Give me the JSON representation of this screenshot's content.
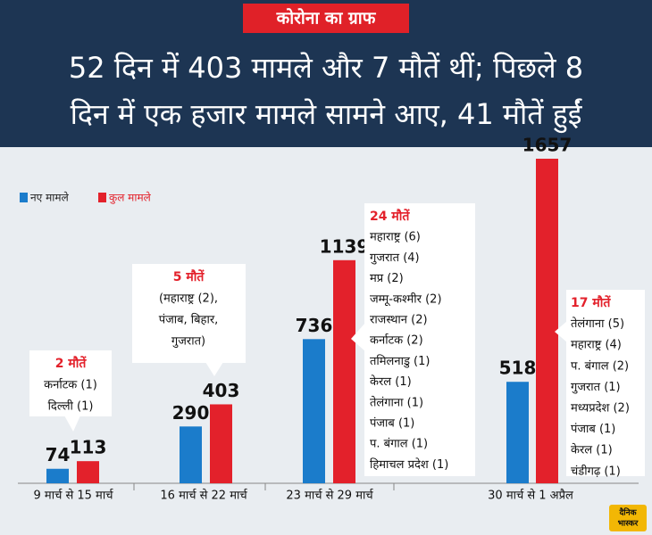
{
  "tag": "कोरोना का ग्राफ",
  "title_lines": [
    "52 दिन में 403 मामले और 7 मौतें थीं; पिछले 8",
    "दिन में एक हजार मामले सामने आए, 41 मौतें हुईं"
  ],
  "chart_data": {
    "type": "bar",
    "categories": [
      "9 मार्च से 15 मार्च",
      "16 मार्च से 22 मार्च",
      "23 मार्च से 29 मार्च",
      "30 मार्च से 1 अप्रैल"
    ],
    "series": [
      {
        "name": "नए मामले",
        "color": "#1b7ccb",
        "values": [
          74,
          290,
          736,
          518
        ]
      },
      {
        "name": "कुल मामले",
        "color": "#e3212b",
        "values": [
          113,
          403,
          1139,
          1657
        ]
      }
    ],
    "legend": "top-left",
    "annotations": [
      {
        "title": "2 मौतें",
        "lines": [
          "कर्नाटक (1)",
          "दिल्ली (1)"
        ]
      },
      {
        "title": "5 मौतें",
        "lines": [
          "(महाराष्ट्र (2),",
          "पंजाब, बिहार,",
          "गुजरात)"
        ]
      },
      {
        "title": "24 मौतें",
        "lines": [
          "महाराष्ट्र (6)",
          "गुजरात (4)",
          "मप्र (2)",
          "जम्मू-कश्मीर (2)",
          "राजस्थान (2)",
          "कर्नाटक (2)",
          "तमिलनाडु (1)",
          "केरल (1)",
          "तेलंगाना (1)",
          "पंजाब (1)",
          "प. बंगाल (1)",
          "हिमाचल प्रदेश (1)"
        ]
      },
      {
        "title": "17 मौतें",
        "lines": [
          "तेलंगाना (5)",
          "महाराष्ट्र (4)",
          "प. बंगाल (2)",
          "गुजरात (1)",
          "मध्यप्रदेश (2)",
          "पंजाब (1)",
          "केरल (1)",
          "चंडीगढ़ (1)"
        ]
      }
    ]
  },
  "logo": [
    "दैनिक",
    "भास्कर"
  ]
}
